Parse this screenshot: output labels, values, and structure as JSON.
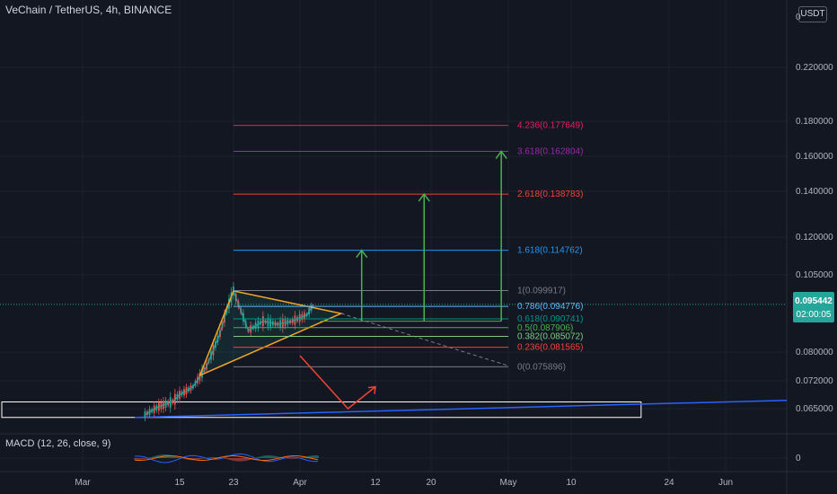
{
  "header": {
    "title": "VeChain / TetherUS, 4h, BINANCE",
    "currency": "USDT"
  },
  "price_badge": {
    "price": "0.095442",
    "countdown": "02:00:05",
    "color": "#26a69a"
  },
  "macd": {
    "label": "MACD (12, 26, close, 9)",
    "zero_label": "0"
  },
  "chart_data": {
    "type": "line",
    "title": "VeChain / TetherUS, 4h, BINANCE",
    "xlabel": "",
    "ylabel": "",
    "x_tick_labels": [
      "Mar",
      "15",
      "23",
      "Apr",
      "12",
      "20",
      "May",
      "10",
      "24",
      "Jun"
    ],
    "y_tick_labels": [
      "0.220000",
      "0.180000",
      "0.160000",
      "0.140000",
      "0.120000",
      "0.105000",
      "0.080000",
      "0.072000",
      "0.065000",
      "0"
    ],
    "top_axis_label": "0",
    "price_path": {
      "x": [
        "Mar 10",
        "Mar 12",
        "Mar 14",
        "Mar 15",
        "Mar 17",
        "Mar 19",
        "Mar 21",
        "Mar 22",
        "Mar 23",
        "Mar 25",
        "Mar 27",
        "Mar 29",
        "Mar 31",
        "Apr 2",
        "Apr 3"
      ],
      "y": [
        0.0635,
        0.0655,
        0.0668,
        0.0685,
        0.0705,
        0.076,
        0.086,
        0.0935,
        0.0998,
        0.087,
        0.09,
        0.089,
        0.09,
        0.092,
        0.0955
      ]
    },
    "fib_levels": [
      {
        "label": "4.236(0.177649)",
        "value": 0.177649,
        "color": "#e91e63"
      },
      {
        "label": "3.618(0.162804)",
        "value": 0.162804,
        "color": "#9c27b0"
      },
      {
        "label": "2.618(0.138783)",
        "value": 0.138783,
        "color": "#f44336"
      },
      {
        "label": "1.618(0.114762)",
        "value": 0.114762,
        "color": "#2196f3"
      },
      {
        "label": "1(0.099917)",
        "value": 0.099917,
        "color": "#787b86"
      },
      {
        "label": "0.786(0.094776)",
        "value": 0.094776,
        "color": "#64b5f6"
      },
      {
        "label": "0.618(0.090741)",
        "value": 0.090741,
        "color": "#009688"
      },
      {
        "label": "0.5(0.087906)",
        "value": 0.087906,
        "color": "#4caf50"
      },
      {
        "label": "0.382(0.085072)",
        "value": 0.085072,
        "color": "#81c784"
      },
      {
        "label": "0.236(0.081565)",
        "value": 0.081565,
        "color": "#f44336"
      },
      {
        "label": "0(0.075896)",
        "value": 0.075896,
        "color": "#787b86"
      }
    ],
    "annotations": {
      "triangle_color": "#f5a623",
      "target_arrows_color": "#4caf50",
      "bearish_arrow_color": "#f44336",
      "support_box_color": "#ffffff",
      "trendline_color": "#2962ff"
    },
    "grid": true
  }
}
